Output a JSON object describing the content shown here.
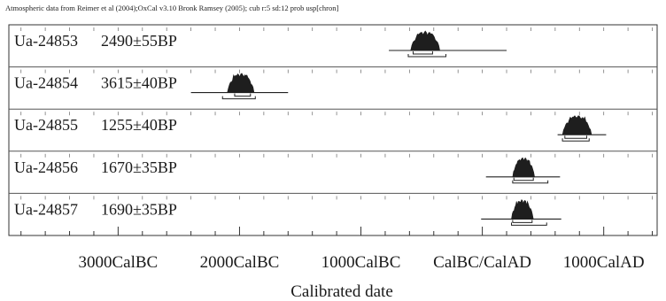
{
  "header_note": "Atmospheric data from Reimer et al (2004);OxCal v3.10 Bronk Ramsey (2005); cub r:5 sd:12 prob usp[chron]",
  "chart_data": {
    "type": "calibrated-date distributions",
    "xlabel": "Calibrated date",
    "x_ticks": [
      {
        "value": -3000,
        "label": "3000CalBC"
      },
      {
        "value": -2000,
        "label": "2000CalBC"
      },
      {
        "value": -1000,
        "label": "1000CalBC"
      },
      {
        "value": 0,
        "label": "CalBC/CalAD"
      },
      {
        "value": 1000,
        "label": "1000CalAD"
      }
    ],
    "xlim": [
      -3900,
      1440
    ],
    "minor_tick_step": 200,
    "samples": [
      {
        "lab_id": "Ua-24853",
        "radiocarbon_age": "2490±55BP",
        "line_range": [
          -770,
          200
        ],
        "peak_range": [
          -590,
          -350
        ],
        "hpd_1sigma": [
          -570,
          -410
        ],
        "hpd_2sigma": [
          -610,
          -300
        ]
      },
      {
        "lab_id": "Ua-24854",
        "radiocarbon_age": "3615±40BP",
        "line_range": [
          -2400,
          -1600
        ],
        "peak_range": [
          -2100,
          -1880
        ],
        "hpd_1sigma": [
          -2040,
          -1910
        ],
        "hpd_2sigma": [
          -2140,
          -1870
        ]
      },
      {
        "lab_id": "Ua-24855",
        "radiocarbon_age": "1255±40BP",
        "line_range": [
          620,
          1020
        ],
        "peak_range": [
          660,
          900
        ],
        "hpd_1sigma": [
          680,
          860
        ],
        "hpd_2sigma": [
          660,
          880
        ]
      },
      {
        "lab_id": "Ua-24856",
        "radiocarbon_age": "1670±35BP",
        "line_range": [
          30,
          640
        ],
        "peak_range": [
          250,
          430
        ],
        "hpd_1sigma": [
          260,
          420
        ],
        "hpd_2sigma": [
          250,
          540
        ]
      },
      {
        "lab_id": "Ua-24857",
        "radiocarbon_age": "1690±35BP",
        "line_range": [
          -10,
          650
        ],
        "peak_range": [
          240,
          420
        ],
        "hpd_1sigma": [
          250,
          410
        ],
        "hpd_2sigma": [
          240,
          530
        ]
      }
    ]
  }
}
